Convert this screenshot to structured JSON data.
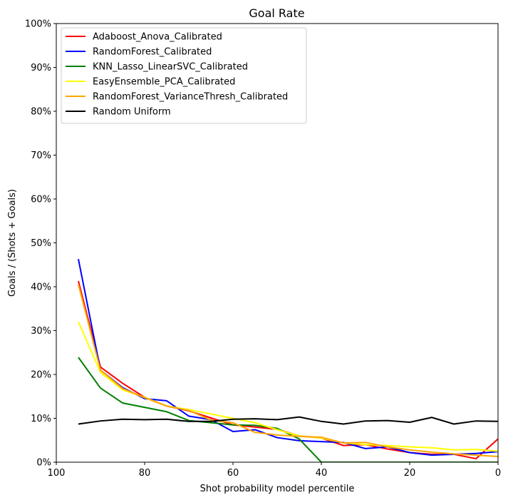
{
  "chart_data": {
    "type": "line",
    "title": "Goal Rate",
    "xlabel": "Shot probability model percentile",
    "ylabel": "Goals / (Shots + Goals)",
    "xlim": [
      100,
      0
    ],
    "ylim": [
      0,
      1
    ],
    "x_ticks": [
      100,
      80,
      60,
      40,
      20,
      0
    ],
    "x_tick_labels": [
      "100",
      "80",
      "60",
      "40",
      "20",
      "0"
    ],
    "y_ticks": [
      0,
      0.1,
      0.2,
      0.3,
      0.4,
      0.5,
      0.6,
      0.7,
      0.8,
      0.9,
      1.0
    ],
    "y_tick_labels": [
      "0%",
      "10%",
      "20%",
      "30%",
      "40%",
      "50%",
      "60%",
      "70%",
      "80%",
      "90%",
      "100%"
    ],
    "grid": false,
    "legend_position": "top-left",
    "x": [
      95,
      90,
      85,
      80,
      75,
      70,
      65,
      60,
      55,
      50,
      45,
      40,
      35,
      30,
      25,
      20,
      15,
      10,
      5,
      0
    ],
    "series": [
      {
        "name": "Adaboost_Anova_Calibrated",
        "color": "#ff0000",
        "values": [
          0.413,
          0.217,
          0.18,
          0.148,
          0.128,
          0.117,
          0.101,
          0.085,
          0.08,
          0.075,
          0.06,
          0.055,
          0.038,
          0.04,
          0.03,
          0.022,
          0.018,
          0.018,
          0.008,
          0.053
        ]
      },
      {
        "name": "RandomForest_Calibrated",
        "color": "#0000ff",
        "values": [
          0.463,
          0.21,
          0.17,
          0.145,
          0.14,
          0.105,
          0.097,
          0.07,
          0.074,
          0.056,
          0.049,
          0.047,
          0.045,
          0.031,
          0.035,
          0.022,
          0.016,
          0.018,
          0.02,
          0.024
        ]
      },
      {
        "name": "KNN_Lasso_LinearSVC_Calibrated",
        "color": "#008000",
        "values": [
          0.239,
          0.169,
          0.135,
          0.125,
          0.115,
          0.095,
          0.09,
          0.085,
          0.084,
          0.077,
          0.053,
          0.0,
          0.0,
          0.0,
          0.0,
          0.0,
          0.0,
          0.0,
          0.0,
          0.0
        ]
      },
      {
        "name": "EasyEnsemble_PCA_Calibrated",
        "color": "#ffff00",
        "values": [
          0.32,
          0.205,
          0.165,
          0.148,
          0.128,
          0.12,
          0.11,
          0.1,
          0.09,
          0.074,
          0.06,
          0.055,
          0.044,
          0.04,
          0.038,
          0.035,
          0.033,
          0.028,
          0.029,
          0.025
        ]
      },
      {
        "name": "RandomForest_VarianceThresh_Calibrated",
        "color": "#ffa500",
        "values": [
          0.405,
          0.21,
          0.168,
          0.147,
          0.128,
          0.118,
          0.096,
          0.09,
          0.068,
          0.062,
          0.059,
          0.057,
          0.044,
          0.045,
          0.035,
          0.028,
          0.023,
          0.019,
          0.016,
          0.013
        ]
      },
      {
        "name": "Random Uniform",
        "color": "#000000",
        "values": [
          0.087,
          0.094,
          0.098,
          0.097,
          0.098,
          0.093,
          0.093,
          0.098,
          0.099,
          0.097,
          0.103,
          0.093,
          0.087,
          0.094,
          0.095,
          0.091,
          0.102,
          0.087,
          0.094,
          0.093
        ]
      }
    ]
  }
}
